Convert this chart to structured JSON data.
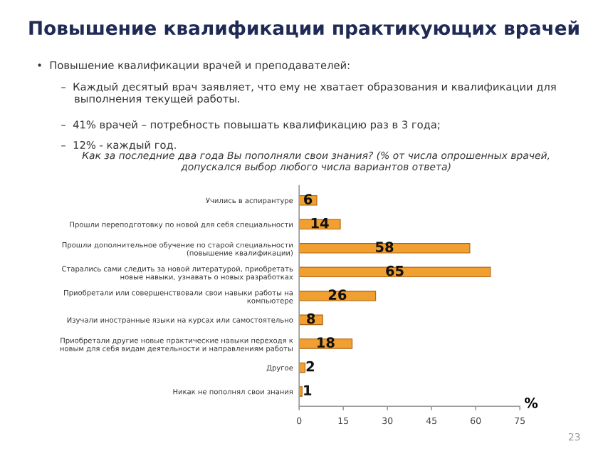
{
  "chart_data": {
    "type": "bar",
    "orientation": "horizontal",
    "title": "Повышение квалификации практикующих врачей",
    "subtitle": "Как за последние два года Вы пополняли свои знания? (% от числа опрошенных врачей,\nдопускался выбор любого числа вариантов ответа)",
    "annotations": [
      "•  Повышение квалификации врачей и преподавателей:",
      "–  Каждый десятый врач заявляет, что ему не хватает образования и квалификации для\n    выполнения текущей работы.",
      "–  41% врачей – потребность повышать квалификацию раз в 3 года;",
      "–  12% - каждый год.",
      "23"
    ],
    "categories": [
      "Учились в аспирантуре",
      "Прошли переподготовку по новой для себя специальности",
      "Прошли дополнительное обучение по старой специальности\n(повышение квалификации)",
      "Старались сами следить за новой литературой, приобретать\nновые навыки, узнавать о новых разработках",
      "Приобретали или совершенствовали свои навыки работы на\nкомпьютере",
      "Изучали иностранные языки на курсах или самостоятельно",
      "Приобретали другие новые практические навыки переходя к\nновым для себя видам деятельности и направлениям работы",
      "Другое",
      "Никак не пополнял свои знания"
    ],
    "values": [
      6,
      14,
      58,
      65,
      26,
      8,
      18,
      2,
      1
    ],
    "color": "#f0a030",
    "data_labels": true,
    "xlabel": "%",
    "xlim": [
      0,
      75
    ],
    "xticks": [
      0,
      15,
      30,
      45,
      60,
      75
    ],
    "grid": false,
    "legend": false
  }
}
